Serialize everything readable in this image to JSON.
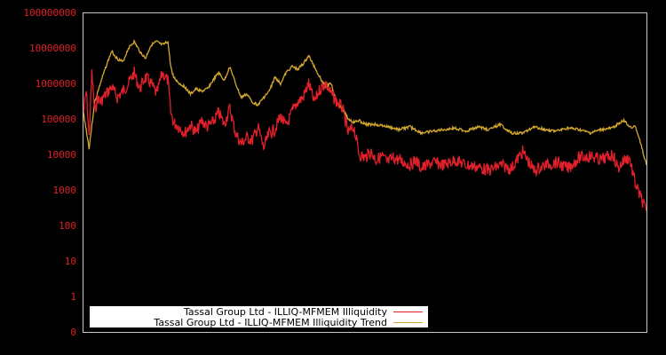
{
  "chart_data": {
    "type": "line",
    "title": "",
    "xlabel": "",
    "ylabel": "",
    "yscale": "log",
    "y_tick_labels": [
      "100000000",
      "10000000",
      "1000000",
      "100000",
      "10000",
      "1000",
      "100",
      "10",
      "1",
      "0"
    ],
    "ylim": [
      0,
      100000000
    ],
    "grid": false,
    "legend_position": "lower-left",
    "background": "#000000",
    "axis_color": "#c8c8c8",
    "tick_label_color": "#e0202a",
    "series": [
      {
        "name": "Tassal Group Ltd - ILLIQ-MFMEM Illiquidity",
        "color": "#e0202a",
        "x_norm": [
          0.0,
          0.005,
          0.01,
          0.015,
          0.02,
          0.025,
          0.03,
          0.04,
          0.05,
          0.06,
          0.07,
          0.08,
          0.09,
          0.1,
          0.11,
          0.12,
          0.13,
          0.14,
          0.15,
          0.155,
          0.16,
          0.17,
          0.18,
          0.19,
          0.2,
          0.21,
          0.22,
          0.23,
          0.24,
          0.25,
          0.26,
          0.27,
          0.28,
          0.29,
          0.3,
          0.31,
          0.32,
          0.33,
          0.34,
          0.35,
          0.36,
          0.37,
          0.38,
          0.39,
          0.4,
          0.41,
          0.42,
          0.43,
          0.44,
          0.45,
          0.46,
          0.47,
          0.48,
          0.49,
          0.5,
          0.51,
          0.52,
          0.53,
          0.54,
          0.55,
          0.56,
          0.57,
          0.58,
          0.59,
          0.6,
          0.62,
          0.64,
          0.66,
          0.68,
          0.7,
          0.72,
          0.74,
          0.76,
          0.78,
          0.8,
          0.82,
          0.84,
          0.86,
          0.88,
          0.9,
          0.92,
          0.94,
          0.95,
          0.96,
          0.97,
          0.98,
          0.99,
          1.0
        ],
        "values": [
          150000,
          600000,
          30000,
          2000000,
          150000,
          400000,
          300000,
          500000,
          800000,
          400000,
          600000,
          1000000,
          2000000,
          700000,
          1500000,
          1000000,
          500000,
          2000000,
          1200000,
          150000,
          80000,
          60000,
          40000,
          70000,
          40000,
          90000,
          60000,
          80000,
          150000,
          70000,
          200000,
          40000,
          20000,
          30000,
          25000,
          60000,
          15000,
          40000,
          50000,
          120000,
          60000,
          150000,
          300000,
          400000,
          1000000,
          300000,
          700000,
          1000000,
          500000,
          300000,
          200000,
          40000,
          60000,
          10000,
          8000,
          12000,
          7000,
          9000,
          6000,
          8000,
          7000,
          6000,
          5000,
          7000,
          4000,
          6000,
          5000,
          7000,
          5000,
          4500,
          3500,
          5000,
          4000,
          12000,
          3500,
          5000,
          6000,
          4000,
          8000,
          9000,
          7000,
          10000,
          4000,
          7000,
          8000,
          1500,
          600,
          250
        ]
      },
      {
        "name": "Tassal Group Ltd - ILLIQ-MFMEM Illiquidity Trend",
        "color": "#d4a830",
        "x_norm": [
          0.0,
          0.01,
          0.02,
          0.03,
          0.04,
          0.05,
          0.06,
          0.07,
          0.08,
          0.09,
          0.1,
          0.11,
          0.12,
          0.13,
          0.14,
          0.15,
          0.155,
          0.16,
          0.17,
          0.18,
          0.19,
          0.2,
          0.21,
          0.22,
          0.23,
          0.24,
          0.25,
          0.26,
          0.27,
          0.28,
          0.29,
          0.3,
          0.31,
          0.32,
          0.33,
          0.34,
          0.35,
          0.36,
          0.37,
          0.38,
          0.39,
          0.4,
          0.41,
          0.42,
          0.43,
          0.44,
          0.45,
          0.46,
          0.47,
          0.48,
          0.49,
          0.5,
          0.52,
          0.54,
          0.56,
          0.58,
          0.6,
          0.62,
          0.64,
          0.66,
          0.68,
          0.7,
          0.72,
          0.74,
          0.76,
          0.78,
          0.8,
          0.82,
          0.84,
          0.86,
          0.88,
          0.9,
          0.92,
          0.94,
          0.95,
          0.96,
          0.97,
          0.98,
          0.99,
          1.0
        ],
        "values": [
          150000,
          15000,
          300000,
          1000000,
          3000000,
          8000000,
          5000000,
          4000000,
          10000000,
          15000000,
          8000000,
          5000000,
          12000000,
          15000000,
          12000000,
          15000000,
          3000000,
          1500000,
          1000000,
          800000,
          500000,
          700000,
          600000,
          700000,
          1200000,
          2000000,
          1200000,
          3000000,
          1000000,
          400000,
          500000,
          300000,
          250000,
          400000,
          600000,
          1500000,
          1000000,
          2000000,
          3000000,
          2500000,
          3500000,
          6000000,
          3000000,
          1500000,
          800000,
          1000000,
          300000,
          200000,
          100000,
          80000,
          90000,
          70000,
          70000,
          60000,
          50000,
          60000,
          40000,
          45000,
          50000,
          55000,
          45000,
          60000,
          50000,
          70000,
          40000,
          40000,
          60000,
          50000,
          45000,
          55000,
          50000,
          40000,
          50000,
          55000,
          75000,
          90000,
          60000,
          60000,
          20000,
          5000
        ]
      }
    ]
  },
  "legend": {
    "items": [
      {
        "label": "Tassal Group Ltd - ILLIQ-MFMEM Illiquidity",
        "color": "#e0202a"
      },
      {
        "label": "Tassal Group Ltd - ILLIQ-MFMEM Illiquidity Trend",
        "color": "#d4a830"
      }
    ]
  }
}
